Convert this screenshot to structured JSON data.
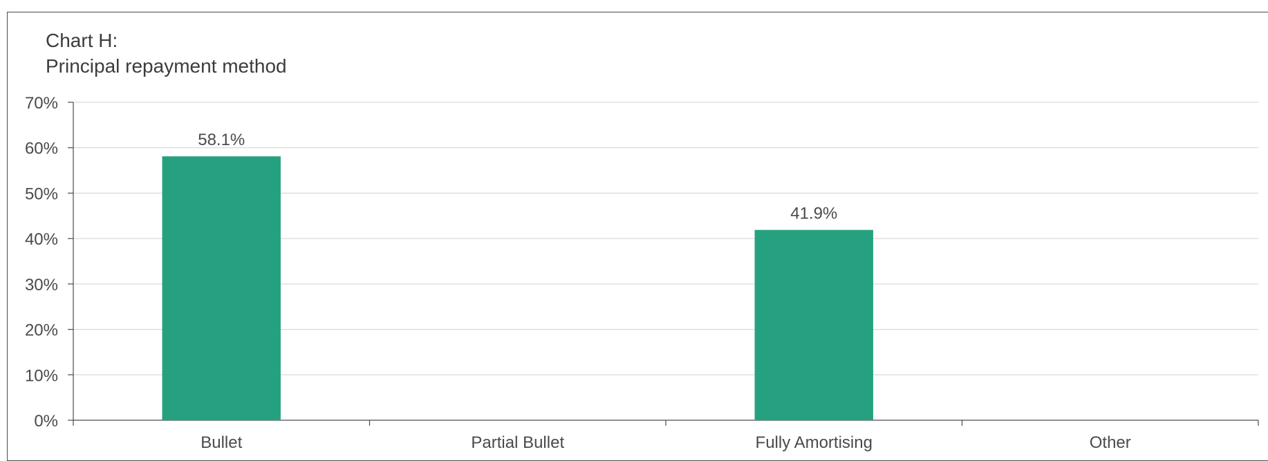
{
  "chart_data": {
    "type": "bar",
    "title_line1": "Chart H:",
    "title_line2": "Principal repayment method",
    "categories": [
      "Bullet",
      "Partial Bullet",
      "Fully Amortising",
      "Other"
    ],
    "values": [
      58.1,
      0,
      41.9,
      0
    ],
    "data_labels": [
      "58.1%",
      "",
      "41.9%",
      ""
    ],
    "ylim": [
      0,
      70
    ],
    "yticks": [
      0,
      10,
      20,
      30,
      40,
      50,
      60,
      70
    ],
    "ytick_labels": [
      "0%",
      "10%",
      "20%",
      "30%",
      "40%",
      "50%",
      "60%",
      "70%"
    ],
    "xlabel": "",
    "ylabel": "",
    "grid": true,
    "legend": "none",
    "bar_color": "#26a17f"
  }
}
